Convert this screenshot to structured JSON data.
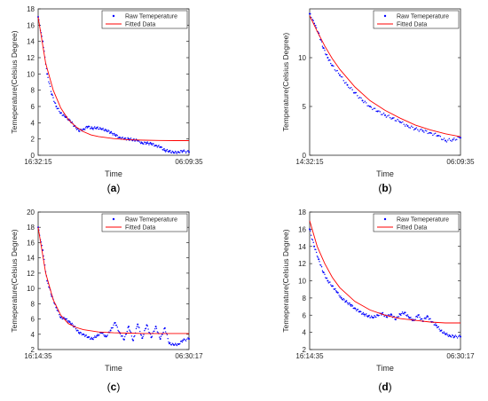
{
  "panels": [
    {
      "caption_letter": "a"
    },
    {
      "caption_letter": "b"
    },
    {
      "caption_letter": "c"
    },
    {
      "caption_letter": "d"
    }
  ],
  "chart_data": [
    {
      "type": "scatter",
      "ylabel": "Temeperature(Celsius Degree)",
      "xlabel": "Time",
      "x_tick_labels": [
        "16:32:15",
        "06:09:35"
      ],
      "ylim": [
        0,
        18
      ],
      "y_ticks": [
        0,
        2,
        4,
        6,
        8,
        10,
        12,
        14,
        16,
        18
      ],
      "legend": {
        "placement": "top-right"
      },
      "series": [
        {
          "name": "Raw Temeperature",
          "kind": "points",
          "color": "#0000ff",
          "x": [
            0.0,
            0.03,
            0.06,
            0.09,
            0.12,
            0.15,
            0.18,
            0.21,
            0.24,
            0.27,
            0.3,
            0.33,
            0.36,
            0.39,
            0.42,
            0.45,
            0.48,
            0.51,
            0.54,
            0.57,
            0.6,
            0.63,
            0.66,
            0.69,
            0.72,
            0.75,
            0.78,
            0.81,
            0.84,
            0.87,
            0.9,
            0.93,
            0.96,
            1.0
          ],
          "y": [
            17,
            14,
            10,
            7.5,
            6,
            5.2,
            4.7,
            4.3,
            3.6,
            3.0,
            3.2,
            3.5,
            3.3,
            3.4,
            3.2,
            3.1,
            2.8,
            2.5,
            2.2,
            2.0,
            2.0,
            1.9,
            1.8,
            1.5,
            1.5,
            1.4,
            1.2,
            1.0,
            0.6,
            0.5,
            0.3,
            0.4,
            0.5,
            0.4
          ]
        },
        {
          "name": "Fitted Data",
          "kind": "line",
          "color": "#ff0000",
          "x": [
            0.0,
            0.05,
            0.1,
            0.15,
            0.2,
            0.25,
            0.3,
            0.35,
            0.4,
            0.5,
            0.6,
            0.7,
            0.8,
            0.9,
            1.0
          ],
          "y": [
            17,
            11.3,
            8,
            5.8,
            4.4,
            3.5,
            2.9,
            2.5,
            2.3,
            2.05,
            1.9,
            1.85,
            1.82,
            1.8,
            1.8
          ]
        }
      ]
    },
    {
      "type": "scatter",
      "ylabel": "Temperature(Celsius Degree)",
      "xlabel": "Time",
      "x_tick_labels": [
        "14:32:15",
        "06:09:35"
      ],
      "ylim": [
        0,
        15
      ],
      "y_ticks": [
        0,
        5,
        10
      ],
      "legend": {
        "placement": "top-right"
      },
      "series": [
        {
          "name": "Raw Temeperature",
          "kind": "points",
          "color": "#0000ff",
          "x": [
            0.0,
            0.03,
            0.06,
            0.09,
            0.12,
            0.15,
            0.2,
            0.25,
            0.3,
            0.35,
            0.4,
            0.45,
            0.5,
            0.55,
            0.6,
            0.65,
            0.7,
            0.75,
            0.8,
            0.85,
            0.9,
            0.95,
            1.0
          ],
          "y": [
            14.5,
            13.5,
            12.5,
            11,
            10,
            9.2,
            8.2,
            7.2,
            6.4,
            5.6,
            5.0,
            4.5,
            4.1,
            3.8,
            3.4,
            3.0,
            2.7,
            2.5,
            2.3,
            2.0,
            1.5,
            1.6,
            1.8
          ]
        },
        {
          "name": "Fitted Data",
          "kind": "line",
          "color": "#ff0000",
          "x": [
            0.0,
            0.05,
            0.1,
            0.15,
            0.2,
            0.3,
            0.4,
            0.5,
            0.6,
            0.7,
            0.8,
            0.9,
            1.0
          ],
          "y": [
            14.3,
            12.7,
            11.2,
            9.9,
            8.8,
            7,
            5.6,
            4.6,
            3.8,
            3.1,
            2.6,
            2.2,
            1.9
          ]
        }
      ]
    },
    {
      "type": "scatter",
      "ylabel": "Temeperature(Celsius Degree)",
      "xlabel": "Time",
      "x_tick_labels": [
        "16:14:35",
        "06:30:17"
      ],
      "ylim": [
        2,
        20
      ],
      "y_ticks": [
        2,
        4,
        6,
        8,
        10,
        12,
        14,
        16,
        18,
        20
      ],
      "legend": {
        "placement": "top-right"
      },
      "series": [
        {
          "name": "Raw Temeperature",
          "kind": "points",
          "color": "#0000ff",
          "x": [
            0.0,
            0.03,
            0.06,
            0.09,
            0.12,
            0.15,
            0.18,
            0.21,
            0.24,
            0.27,
            0.3,
            0.33,
            0.36,
            0.39,
            0.42,
            0.45,
            0.48,
            0.51,
            0.54,
            0.57,
            0.6,
            0.63,
            0.66,
            0.69,
            0.72,
            0.75,
            0.78,
            0.81,
            0.84,
            0.87,
            0.9,
            0.93,
            0.96,
            1.0
          ],
          "y": [
            18,
            15,
            11,
            9,
            7.5,
            6.2,
            6.0,
            5.6,
            5.0,
            4.2,
            4.0,
            3.6,
            3.4,
            3.8,
            4.2,
            3.7,
            4.5,
            5.5,
            4.2,
            3.3,
            5.0,
            3.2,
            5.3,
            3.5,
            5.2,
            3.6,
            5.0,
            3.4,
            4.8,
            2.8,
            2.6,
            2.7,
            3.2,
            3.4
          ]
        },
        {
          "name": "Fitted Data",
          "kind": "line",
          "color": "#ff0000",
          "x": [
            0.0,
            0.05,
            0.1,
            0.15,
            0.2,
            0.25,
            0.3,
            0.4,
            0.5,
            0.6,
            0.7,
            0.8,
            0.9,
            1.0
          ],
          "y": [
            18,
            12,
            8.5,
            6.5,
            5.4,
            4.9,
            4.6,
            4.3,
            4.2,
            4.15,
            4.1,
            4.1,
            4.1,
            4.1
          ]
        }
      ]
    },
    {
      "type": "scatter",
      "ylabel": "Temeperature(Celsius Degree)",
      "xlabel": "Time",
      "x_tick_labels": [
        "16:14:35",
        "06:30:17"
      ],
      "ylim": [
        2,
        18
      ],
      "y_ticks": [
        2,
        4,
        6,
        8,
        10,
        12,
        14,
        16,
        18
      ],
      "legend": {
        "placement": "top-right"
      },
      "series": [
        {
          "name": "Raw Temeperature",
          "kind": "points",
          "color": "#0000ff",
          "x": [
            0.0,
            0.03,
            0.06,
            0.09,
            0.12,
            0.15,
            0.18,
            0.21,
            0.24,
            0.27,
            0.3,
            0.33,
            0.36,
            0.39,
            0.42,
            0.45,
            0.48,
            0.51,
            0.54,
            0.57,
            0.6,
            0.63,
            0.66,
            0.69,
            0.72,
            0.75,
            0.78,
            0.81,
            0.84,
            0.87,
            0.9,
            0.93,
            0.96,
            1.0
          ],
          "y": [
            16,
            14,
            12.5,
            11,
            10,
            9.4,
            8.7,
            8.0,
            7.6,
            7.2,
            6.8,
            6.4,
            6.1,
            5.9,
            5.7,
            6.0,
            6.2,
            5.8,
            6.1,
            5.5,
            6.1,
            6.3,
            5.7,
            5.4,
            6.0,
            5.3,
            5.9,
            5.2,
            4.8,
            4.2,
            3.8,
            3.6,
            3.5,
            3.5
          ]
        },
        {
          "name": "Fitted Data",
          "kind": "line",
          "color": "#ff0000",
          "x": [
            0.0,
            0.05,
            0.1,
            0.15,
            0.2,
            0.3,
            0.4,
            0.5,
            0.6,
            0.7,
            0.8,
            0.9,
            1.0
          ],
          "y": [
            17,
            14,
            12,
            10.4,
            9.2,
            7.6,
            6.6,
            6,
            5.6,
            5.4,
            5.2,
            5.1,
            5.1
          ]
        }
      ]
    }
  ]
}
